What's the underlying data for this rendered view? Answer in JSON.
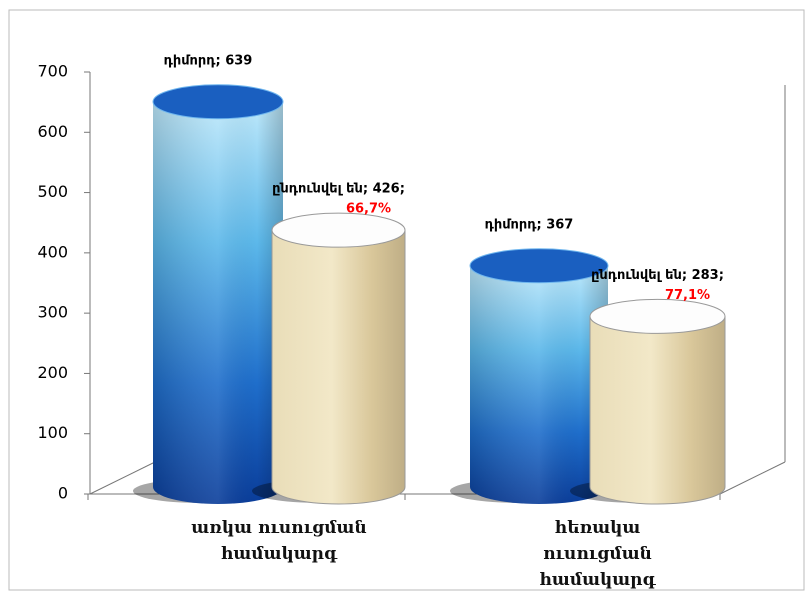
{
  "chart_data": {
    "type": "cylinder",
    "categories": [
      "առկա ուսուցման համակարգ",
      "հեռակա ուսուցման համակարգ"
    ],
    "series": [
      {
        "name": "դիմորդ",
        "color": "#1e6fc8",
        "values": [
          639,
          367
        ],
        "value_labels": [
          "դիմորդ; 639",
          "դիմորդ; 367"
        ]
      },
      {
        "name": "ընդունվել են",
        "color": "#e8d9b0",
        "values": [
          426,
          283
        ],
        "value_labels": [
          "ընդունվել են; 426;",
          "ընդունվել են; 283;"
        ],
        "shares": [
          66.7,
          77.1
        ],
        "share_labels": [
          "66,7%",
          "77,1%"
        ],
        "share_color": "#ff0000"
      }
    ],
    "ylim": [
      0,
      700
    ],
    "yticks": [
      0,
      100,
      200,
      300,
      400,
      500,
      600,
      700
    ]
  }
}
